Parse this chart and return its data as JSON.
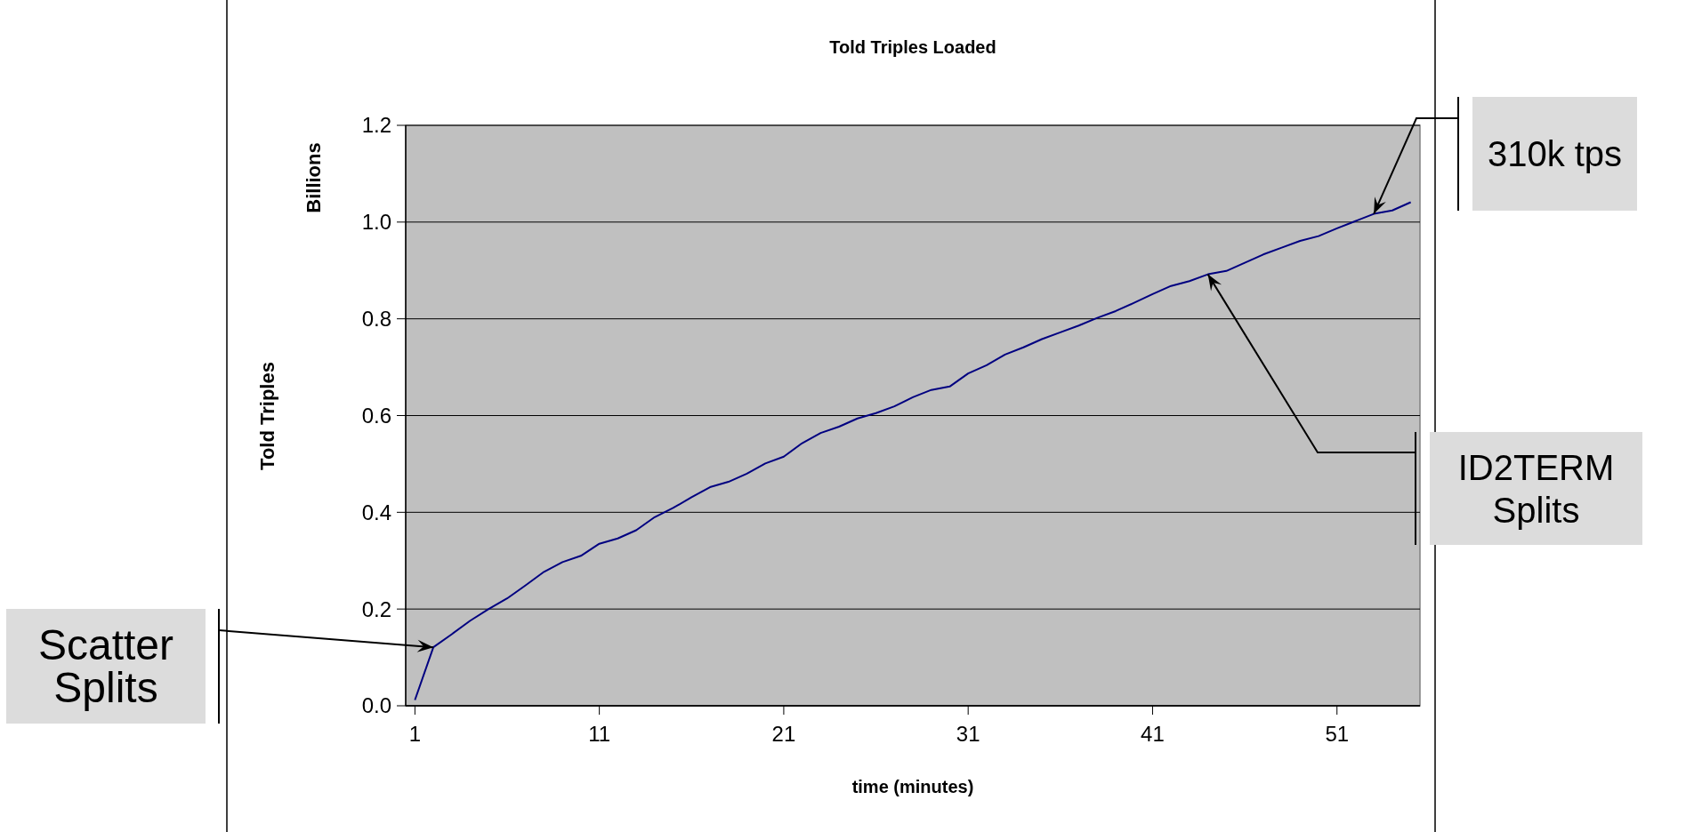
{
  "chart_data": {
    "type": "line",
    "title": "Told Triples Loaded",
    "xlabel": "time (minutes)",
    "ylabel": "Told Triples",
    "subtitle": "Billions",
    "x": [
      1,
      2,
      3,
      4,
      5,
      6,
      7,
      8,
      9,
      10,
      11,
      12,
      13,
      14,
      15,
      16,
      17,
      18,
      19,
      20,
      21,
      22,
      23,
      24,
      25,
      26,
      27,
      28,
      29,
      30,
      31,
      32,
      33,
      34,
      35,
      36,
      37,
      38,
      39,
      40,
      41,
      42,
      43,
      44,
      45,
      46,
      47,
      48,
      49,
      50,
      51,
      52,
      53,
      54,
      55
    ],
    "series": [
      {
        "color": "#000080",
        "values": [
          0.012,
          0.121,
          0.148,
          0.176,
          0.2,
          0.222,
          0.249,
          0.277,
          0.297,
          0.31,
          0.335,
          0.346,
          0.363,
          0.39,
          0.409,
          0.431,
          0.452,
          0.463,
          0.48,
          0.501,
          0.515,
          0.543,
          0.564,
          0.577,
          0.594,
          0.605,
          0.619,
          0.638,
          0.653,
          0.66,
          0.687,
          0.704,
          0.726,
          0.741,
          0.758,
          0.772,
          0.786,
          0.802,
          0.816,
          0.833,
          0.851,
          0.868,
          0.878,
          0.892,
          0.899,
          0.916,
          0.933,
          0.947,
          0.961,
          0.971,
          0.987,
          1.002,
          1.017,
          1.024,
          1.041
        ]
      }
    ],
    "xlim": [
      0.5,
      55.5
    ],
    "xticks": [
      1,
      11,
      21,
      31,
      41,
      51
    ],
    "ylim": [
      0,
      1.2
    ],
    "yticks": [
      {
        "value": 0,
        "label": "0.0"
      },
      {
        "value": 0.2,
        "label": "0.2"
      },
      {
        "value": 0.4,
        "label": "0.4"
      },
      {
        "value": 0.6,
        "label": "0.6"
      },
      {
        "value": 0.8,
        "label": "0.8"
      },
      {
        "value": 1,
        "label": "1.0"
      },
      {
        "value": 1.2,
        "label": "1.2"
      }
    ],
    "grid": "y",
    "marker": "none",
    "line_style": "solid",
    "annotations": [
      {
        "text": "Scatter Splits",
        "x": 2,
        "y": 0.121
      },
      {
        "text": "ID2TERM Splits",
        "x": 44,
        "y": 0.892
      },
      {
        "text": "310k tps",
        "x": 53,
        "y": 1.017
      }
    ]
  }
}
